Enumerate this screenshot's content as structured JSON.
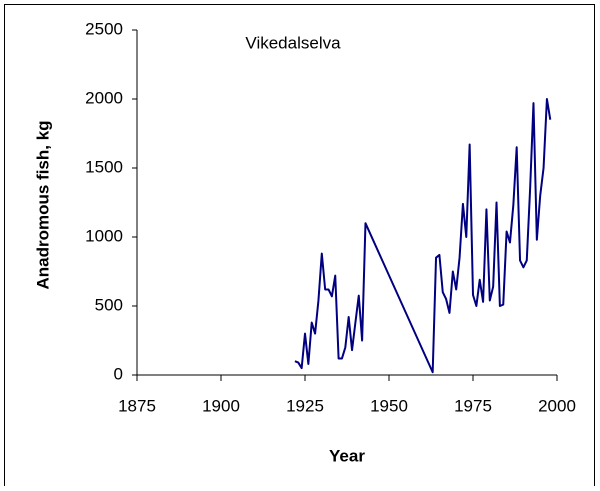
{
  "chart_data": {
    "type": "line",
    "title": "Vikedalselva",
    "x_label": "Year",
    "y_label": "Anadromous fish, kg",
    "x": [
      1922,
      1923,
      1924,
      1925,
      1926,
      1927,
      1928,
      1929,
      1930,
      1931,
      1932,
      1933,
      1934,
      1935,
      1936,
      1937,
      1938,
      1939,
      1940,
      1941,
      1942,
      1943,
      1963,
      1964,
      1965,
      1966,
      1967,
      1968,
      1969,
      1970,
      1971,
      1972,
      1973,
      1974,
      1975,
      1976,
      1977,
      1978,
      1979,
      1980,
      1981,
      1982,
      1983,
      1984,
      1985,
      1986,
      1987,
      1988,
      1989,
      1990,
      1991,
      1992,
      1993,
      1994,
      1995,
      1996,
      1997,
      1998
    ],
    "series": [
      {
        "name": "Vikedalselva",
        "color": "#000080",
        "values": [
          100,
          90,
          50,
          300,
          80,
          380,
          300,
          540,
          880,
          620,
          620,
          570,
          720,
          120,
          120,
          200,
          420,
          180,
          380,
          575,
          250,
          1100,
          20,
          850,
          870,
          600,
          550,
          450,
          750,
          620,
          850,
          1240,
          1000,
          1670,
          580,
          500,
          690,
          530,
          1200,
          540,
          640,
          1250,
          500,
          510,
          1040,
          960,
          1230,
          1650,
          830,
          780,
          830,
          1350,
          1970,
          980,
          1300,
          1500,
          2000,
          1850
        ]
      }
    ],
    "xlim": [
      1875,
      2000
    ],
    "xticks": [
      1875,
      1900,
      1925,
      1950,
      1975,
      2000
    ],
    "ylim": [
      0,
      2500
    ],
    "yticks": [
      0,
      500,
      1000,
      1500,
      2000,
      2500
    ]
  }
}
